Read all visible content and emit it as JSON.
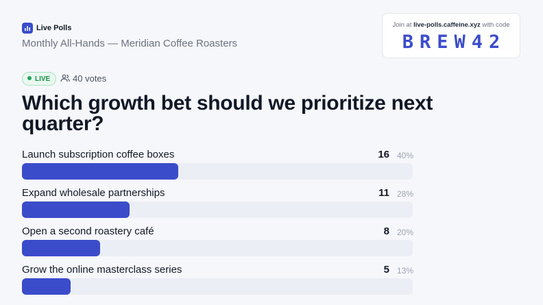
{
  "header": {
    "app_name": "Live Polls",
    "subtitle": "Monthly All-Hands — Meridian Coffee Roasters"
  },
  "join": {
    "prefix": "Join at",
    "url": "live-polls.caffeine.xyz",
    "suffix": "with code",
    "code": "BREW42"
  },
  "status": {
    "badge": "LIVE",
    "votes_count": 40,
    "votes_word": "votes"
  },
  "question": "Which growth bet should we prioritize next quarter?",
  "options": [
    {
      "label": "Launch subscription coffee boxes",
      "votes": 16,
      "percent": "40%"
    },
    {
      "label": "Expand wholesale partnerships",
      "votes": 11,
      "percent": "28%"
    },
    {
      "label": "Open a second roastery café",
      "votes": 8,
      "percent": "20%"
    },
    {
      "label": "Grow the online masterclass series",
      "votes": 5,
      "percent": "13%"
    }
  ]
}
